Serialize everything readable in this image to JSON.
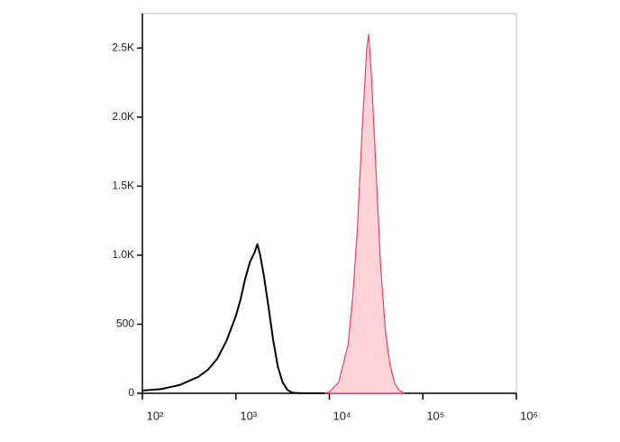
{
  "chart_data": {
    "type": "line",
    "xlog": true,
    "xlim": [
      100,
      1000000
    ],
    "xticks": [
      {
        "value": 100,
        "label": "10²"
      },
      {
        "value": 1000,
        "label": "10³"
      },
      {
        "value": 10000,
        "label": "10⁴"
      },
      {
        "value": 100000,
        "label": "10⁵"
      },
      {
        "value": 1000000,
        "label": "10⁶"
      }
    ],
    "ylim": [
      0,
      2750
    ],
    "yticks": [
      0,
      500,
      {
        "value": 1000,
        "label": "1.0K"
      },
      {
        "value": 1500,
        "label": "1.5K"
      },
      {
        "value": 2000,
        "label": "2.0K"
      },
      {
        "value": 2500,
        "label": "2.5K"
      }
    ],
    "series": [
      {
        "color": "#000000",
        "x": [
          100,
          158,
          251,
          398,
          501,
          631,
          794,
          1000,
          1122,
          1259,
          1413,
          1585,
          1698,
          1820,
          1995,
          2239,
          2512,
          2818,
          3162,
          3548,
          3981,
          5012,
          10000
        ],
        "values": [
          20,
          30,
          60,
          120,
          170,
          250,
          380,
          560,
          680,
          830,
          950,
          1020,
          1080,
          1000,
          850,
          620,
          380,
          190,
          80,
          25,
          5,
          0,
          0
        ]
      },
      {
        "color": "#e8435a",
        "fill": "#fbd3d8",
        "x": [
          8913,
          10000,
          12589,
          15849,
          17783,
          19953,
          22387,
          25119,
          26303,
          28184,
          31623,
          35481,
          39811,
          44668,
          50119,
          56234,
          63096
        ],
        "values": [
          0,
          10,
          80,
          350,
          700,
          1200,
          1900,
          2500,
          2600,
          2300,
          1600,
          900,
          450,
          200,
          70,
          20,
          0
        ]
      }
    ]
  }
}
